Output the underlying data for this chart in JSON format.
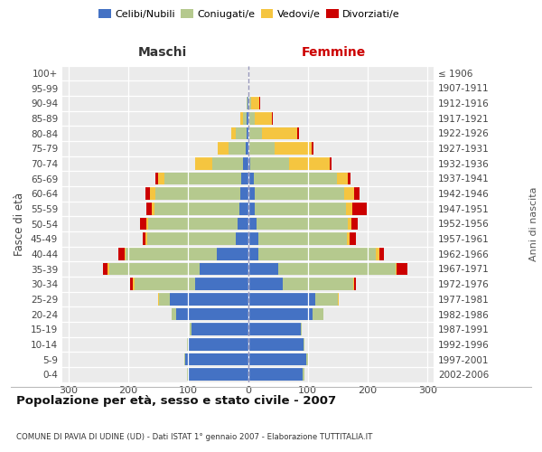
{
  "age_groups": [
    "0-4",
    "5-9",
    "10-14",
    "15-19",
    "20-24",
    "25-29",
    "30-34",
    "35-39",
    "40-44",
    "45-49",
    "50-54",
    "55-59",
    "60-64",
    "65-69",
    "70-74",
    "75-79",
    "80-84",
    "85-89",
    "90-94",
    "95-99",
    "100+"
  ],
  "birth_years": [
    "2002-2006",
    "1997-2001",
    "1992-1996",
    "1987-1991",
    "1982-1986",
    "1977-1981",
    "1972-1976",
    "1967-1971",
    "1962-1966",
    "1957-1961",
    "1952-1956",
    "1947-1951",
    "1942-1946",
    "1937-1941",
    "1932-1936",
    "1927-1931",
    "1922-1926",
    "1917-1921",
    "1912-1916",
    "1907-1911",
    "≤ 1906"
  ],
  "maschi_celibi": [
    100,
    105,
    100,
    95,
    120,
    130,
    88,
    80,
    52,
    20,
    18,
    14,
    13,
    12,
    8,
    4,
    3,
    2,
    1,
    0,
    0
  ],
  "maschi_coniugati": [
    2,
    2,
    2,
    2,
    8,
    18,
    102,
    152,
    152,
    148,
    148,
    142,
    142,
    128,
    52,
    28,
    17,
    7,
    2,
    0,
    0
  ],
  "maschi_vedovi": [
    0,
    0,
    0,
    0,
    0,
    2,
    2,
    2,
    2,
    3,
    3,
    5,
    8,
    10,
    28,
    18,
    8,
    4,
    0,
    0,
    0
  ],
  "maschi_divorziati": [
    0,
    0,
    0,
    0,
    0,
    0,
    5,
    8,
    10,
    5,
    12,
    8,
    8,
    5,
    0,
    0,
    0,
    0,
    0,
    0,
    0
  ],
  "femmine_nubili": [
    92,
    98,
    93,
    88,
    108,
    112,
    58,
    50,
    18,
    17,
    14,
    12,
    12,
    10,
    4,
    2,
    2,
    2,
    1,
    0,
    0
  ],
  "femmine_coniugate": [
    2,
    2,
    2,
    2,
    18,
    38,
    118,
    196,
    196,
    148,
    152,
    152,
    148,
    138,
    65,
    42,
    22,
    10,
    4,
    1,
    0
  ],
  "femmine_vedove": [
    0,
    0,
    0,
    0,
    0,
    2,
    2,
    2,
    5,
    5,
    7,
    10,
    18,
    18,
    68,
    62,
    58,
    28,
    14,
    2,
    0
  ],
  "femmine_divorziate": [
    0,
    0,
    0,
    0,
    0,
    0,
    3,
    18,
    8,
    10,
    10,
    24,
    8,
    5,
    3,
    3,
    3,
    1,
    1,
    0,
    0
  ],
  "colors_celibi": "#4472c4",
  "colors_coniugati": "#b5c98e",
  "colors_vedovi": "#f5c540",
  "colors_divorziati": "#cc0000",
  "xlim": 310,
  "title": "Popolazione per età, sesso e stato civile - 2007",
  "subtitle": "COMUNE DI PAVIA DI UDINE (UD) - Dati ISTAT 1° gennaio 2007 - Elaborazione TUTTITALIA.IT",
  "legend_labels": [
    "Celibi/Nubili",
    "Coniugati/e",
    "Vedovi/e",
    "Divorziati/e"
  ],
  "maschi_label": "Maschi",
  "femmine_label": "Femmine",
  "fasce_label": "Fasce di età",
  "anni_label": "Anni di nascita"
}
